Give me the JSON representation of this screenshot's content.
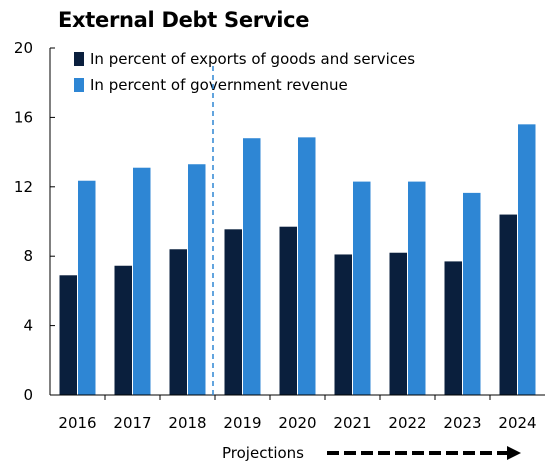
{
  "chart_data": {
    "type": "bar",
    "title": "External Debt Service",
    "categories": [
      "2016",
      "2017",
      "2018",
      "2019",
      "2020",
      "2021",
      "2022",
      "2023",
      "2024"
    ],
    "series": [
      {
        "name": "In percent of exports of goods and services",
        "color": "#0a1f3d",
        "values": [
          6.9,
          7.45,
          8.4,
          9.55,
          9.7,
          8.1,
          8.2,
          7.7,
          10.4
        ]
      },
      {
        "name": "In percent of government revenue",
        "color": "#2e86d4",
        "values": [
          12.35,
          13.1,
          13.3,
          14.8,
          14.85,
          12.3,
          12.3,
          11.65,
          15.6
        ]
      }
    ],
    "ylim": [
      0,
      20
    ],
    "yticks": [
      0,
      4,
      8,
      12,
      16,
      20
    ],
    "grid": false,
    "legend_position": "top-left",
    "projection_start": "2019",
    "annotation": "Projections"
  }
}
